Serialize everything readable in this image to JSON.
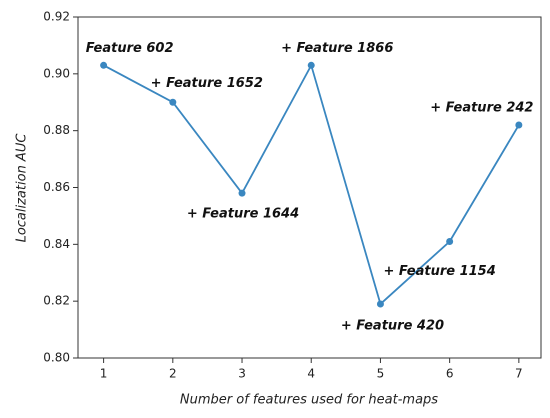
{
  "chart_data": {
    "type": "line",
    "x_label": "Number of features used for heat-maps",
    "y_label": "Localization AUC",
    "x": [
      1,
      2,
      3,
      4,
      5,
      6,
      7
    ],
    "series": [
      {
        "color": "#3a87c0",
        "values": [
          0.903,
          0.89,
          0.858,
          0.903,
          0.819,
          0.841,
          0.882
        ],
        "point_labels": [
          "Feature 602",
          "+ Feature 1652",
          "+ Feature 1644",
          "+ Feature 1866",
          "+ Feature 420",
          "+ Feature 1154",
          "+ Feature 242"
        ]
      }
    ],
    "xlim": [
      0.63,
      7.32
    ],
    "xticks": [
      1,
      2,
      3,
      4,
      5,
      6,
      7
    ],
    "ylim": [
      0.8,
      0.92
    ],
    "yticks": [
      {
        "value": 0.8,
        "label": "0.80"
      },
      {
        "value": 0.82,
        "label": "0.82"
      },
      {
        "value": 0.84,
        "label": "0.84"
      },
      {
        "value": 0.86,
        "label": "0.86"
      },
      {
        "value": 0.88,
        "label": "0.88"
      },
      {
        "value": 0.9,
        "label": "0.90"
      },
      {
        "value": 0.92,
        "label": "0.92"
      }
    ]
  }
}
